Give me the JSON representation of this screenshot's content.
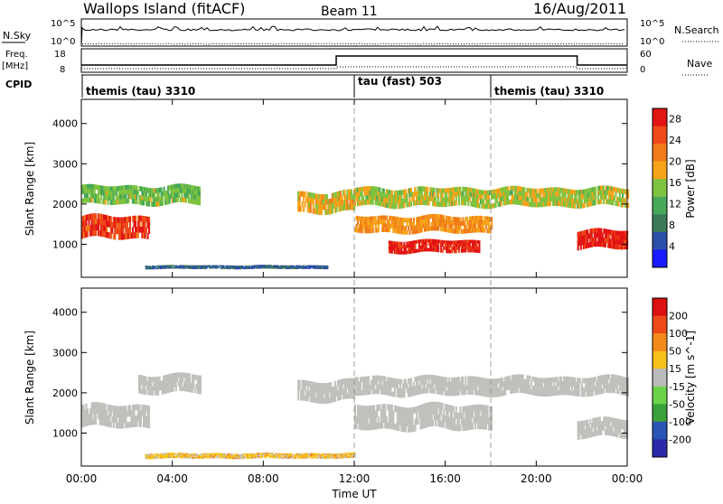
{
  "header": {
    "site": "Wallops Island (fitACF)",
    "beam": "Beam 11",
    "date": "16/Aug/2011"
  },
  "top_panels": {
    "nsky_label": "N.Sky",
    "nsky_ticks": [
      "10^5",
      "10^0"
    ],
    "nsearch_label": "N.Search",
    "nsearch_ticks": [
      "10^5",
      "10^0"
    ],
    "freq_label": "Freq.",
    "freq_unit": "[MHz]",
    "freq_ticks": [
      "18",
      "8"
    ],
    "nave_label": "Nave",
    "nave_ticks": [
      "60",
      "0"
    ],
    "cpid_label": "CPID",
    "cpid_segments": [
      {
        "label": "themis (tau) 3310",
        "start_hour": 0
      },
      {
        "label": "tau (fast) 503",
        "start_hour": 12
      },
      {
        "label": "themis (tau) 3310",
        "start_hour": 18
      }
    ]
  },
  "colors": {
    "power": [
      "#1a1aff",
      "#2a4fa8",
      "#3a7a55",
      "#46a858",
      "#7fc240",
      "#f7a31a",
      "#f07c1a",
      "#ee4a1a",
      "#e21414"
    ],
    "velocity": [
      "#2a2aaa",
      "#2a55b5",
      "#3aa03a",
      "#6bd24a",
      "#bbbbbb",
      "#f7c11a",
      "#f48a1a",
      "#ee4a1a",
      "#dd1111"
    ],
    "ground_scatter": "#c0c0bc"
  },
  "chart_data": [
    {
      "type": "heatmap",
      "title": "",
      "xlabel": "",
      "ylabel": "Slant Range [km]",
      "xlim": [
        0,
        24
      ],
      "ylim": [
        180,
        4600
      ],
      "y_ticks": [
        "1000",
        "2000",
        "3000",
        "4000"
      ],
      "colorbar": {
        "label": "Power [dB]",
        "ticks": [
          "4",
          "8",
          "12",
          "16",
          "20",
          "24",
          "28"
        ],
        "range": [
          0,
          30
        ]
      },
      "scatter_bands": [
        {
          "start_hour": 0.0,
          "end_hour": 3.0,
          "range_start_km": 1150,
          "range_end_km": 1700,
          "power_db": 26
        },
        {
          "start_hour": 0.0,
          "end_hour": 5.2,
          "range_start_km": 2000,
          "range_end_km": 2450,
          "power_db": 14
        },
        {
          "start_hour": 2.8,
          "end_hour": 10.8,
          "range_start_km": 400,
          "range_end_km": 480,
          "power_db": 6
        },
        {
          "start_hour": 9.5,
          "end_hour": 12.0,
          "range_start_km": 1800,
          "range_end_km": 2300,
          "power_db": 18
        },
        {
          "start_hour": 12.0,
          "end_hour": 18.0,
          "range_start_km": 1300,
          "range_end_km": 1700,
          "power_db": 20
        },
        {
          "start_hour": 13.5,
          "end_hour": 17.5,
          "range_start_km": 800,
          "range_end_km": 1100,
          "power_db": 28
        },
        {
          "start_hour": 12.0,
          "end_hour": 24.0,
          "range_start_km": 1950,
          "range_end_km": 2400,
          "power_db": 16
        },
        {
          "start_hour": 21.8,
          "end_hour": 24.0,
          "range_start_km": 900,
          "range_end_km": 1350,
          "power_db": 28
        }
      ]
    },
    {
      "type": "heatmap",
      "title": "",
      "xlabel": "Time UT",
      "ylabel": "Slant Range [km]",
      "xlim": [
        0,
        24
      ],
      "ylim": [
        180,
        4600
      ],
      "x_ticks": [
        "00:00",
        "04:00",
        "08:00",
        "12:00",
        "16:00",
        "20:00",
        "00:00"
      ],
      "y_ticks": [
        "1000",
        "2000",
        "3000",
        "4000"
      ],
      "colorbar": {
        "label": "Velocity [m s^-1]",
        "ticks": [
          "200",
          "100",
          "50",
          "15",
          "-15",
          "-50",
          "-100",
          "-200"
        ]
      },
      "note_ground_scatter_band_velocity": 0,
      "scatter_bands": [
        {
          "start_hour": 0.0,
          "end_hour": 3.0,
          "range_start_km": 1150,
          "range_end_km": 1700,
          "velocity_ms": 0
        },
        {
          "start_hour": 2.5,
          "end_hour": 5.2,
          "range_start_km": 2000,
          "range_end_km": 2450,
          "velocity_ms": 0
        },
        {
          "start_hour": 2.8,
          "end_hour": 12.0,
          "range_start_km": 380,
          "range_end_km": 500,
          "velocity_ms": -30
        },
        {
          "start_hour": 9.5,
          "end_hour": 12.0,
          "range_start_km": 1800,
          "range_end_km": 2300,
          "velocity_ms": 0
        },
        {
          "start_hour": 12.0,
          "end_hour": 18.0,
          "range_start_km": 1100,
          "range_end_km": 1700,
          "velocity_ms": 0
        },
        {
          "start_hour": 12.0,
          "end_hour": 24.0,
          "range_start_km": 1950,
          "range_end_km": 2400,
          "velocity_ms": 0
        },
        {
          "start_hour": 21.8,
          "end_hour": 24.0,
          "range_start_km": 900,
          "range_end_km": 1350,
          "velocity_ms": 0
        }
      ]
    }
  ]
}
